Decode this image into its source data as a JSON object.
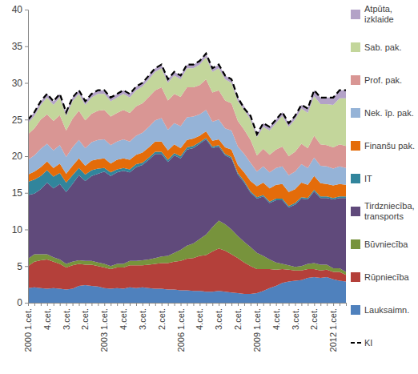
{
  "chart_data": {
    "type": "area",
    "stacked": true,
    "grid": false,
    "legend": "right",
    "categories": [
      "2000 1.cet.",
      null,
      null,
      "4.cet.",
      null,
      null,
      "3.cet.",
      null,
      null,
      "2.cet.",
      null,
      null,
      "2003 1.cet.",
      null,
      null,
      "4.cet.",
      null,
      null,
      "3.cet.",
      null,
      null,
      "2.cet.",
      null,
      null,
      "2006 1.cet.",
      null,
      null,
      "4.cet.",
      null,
      null,
      "3.cet.",
      null,
      null,
      "2.cet.",
      null,
      null,
      "2009 1.cet.",
      null,
      null,
      "4.cet.",
      null,
      null,
      "3.cet.",
      null,
      null,
      "2.cet.",
      null,
      null,
      "2012 1.cet.",
      null,
      null
    ],
    "ylim": [
      0,
      40
    ],
    "yticks": [
      0,
      5,
      10,
      15,
      20,
      25,
      30,
      35,
      40
    ],
    "series": [
      {
        "name": "Lauksaimn.",
        "color": "#4f81bd",
        "values": [
          2.0,
          2.1,
          2.0,
          1.9,
          2.0,
          1.9,
          1.8,
          1.9,
          2.3,
          2.4,
          2.3,
          2.2,
          2.0,
          1.9,
          2.0,
          1.9,
          2.1,
          2.0,
          2.1,
          2.0,
          1.9,
          1.9,
          1.8,
          1.8,
          1.7,
          1.7,
          1.6,
          1.6,
          1.5,
          1.5,
          1.6,
          1.5,
          1.4,
          1.3,
          1.2,
          1.2,
          1.3,
          1.6,
          2.0,
          2.3,
          2.7,
          2.9,
          3.0,
          3.1,
          3.4,
          3.5,
          3.4,
          3.5,
          3.2,
          3.0,
          2.9
        ]
      },
      {
        "name": "Rūpniecība",
        "color": "#b4403a",
        "values": [
          3.0,
          3.5,
          3.8,
          4.0,
          3.6,
          3.4,
          3.0,
          3.2,
          3.0,
          2.8,
          2.9,
          2.8,
          2.8,
          2.7,
          2.8,
          2.9,
          3.0,
          3.1,
          3.0,
          3.2,
          3.4,
          3.5,
          3.6,
          3.8,
          4.0,
          4.3,
          4.5,
          4.8,
          5.0,
          5.5,
          5.8,
          5.6,
          5.2,
          4.8,
          4.3,
          3.8,
          3.3,
          3.0,
          2.6,
          2.2,
          1.9,
          1.6,
          1.4,
          1.3,
          1.2,
          1.1,
          1.0,
          1.0,
          1.0,
          1.2,
          0.9
        ]
      },
      {
        "name": "Būvniecība",
        "color": "#77933c",
        "values": [
          1.0,
          1.0,
          0.8,
          0.7,
          0.6,
          0.6,
          0.5,
          0.5,
          0.5,
          0.5,
          0.5,
          0.5,
          0.5,
          0.4,
          0.5,
          0.5,
          0.6,
          0.6,
          0.7,
          0.7,
          0.8,
          0.9,
          1.0,
          1.2,
          1.5,
          1.8,
          2.0,
          2.3,
          2.8,
          3.3,
          3.8,
          3.6,
          3.4,
          3.0,
          2.8,
          2.6,
          2.2,
          1.8,
          1.3,
          1.0,
          0.7,
          0.6,
          0.5,
          0.6,
          0.7,
          0.8,
          0.8,
          0.7,
          0.5,
          0.5,
          0.4
        ]
      },
      {
        "name": "Tirdzniecība, transports",
        "color": "#604a7b",
        "values": [
          8.7,
          8.3,
          8.9,
          9.8,
          9.4,
          10.3,
          9.8,
          10.6,
          11.6,
          10.9,
          11.6,
          12.1,
          12.6,
          12.3,
          12.5,
          12.7,
          12.1,
          12.8,
          13.0,
          13.6,
          14.2,
          14.0,
          12.8,
          13.3,
          12.5,
          13.1,
          13.0,
          13.0,
          13.0,
          10.8,
          10.1,
          9.4,
          9.7,
          8.4,
          8.1,
          7.4,
          7.4,
          8.1,
          7.7,
          8.5,
          8.7,
          7.9,
          8.5,
          9.2,
          8.8,
          9.8,
          9.1,
          9.1,
          9.4,
          9.6,
          10.1
        ]
      },
      {
        "name": "IT",
        "color": "#31859c",
        "values": [
          1.8,
          1.9,
          1.8,
          1.7,
          1.6,
          1.5,
          1.3,
          1.2,
          1.0,
          0.9,
          0.8,
          0.7,
          0.5,
          0.5,
          0.4,
          0.4,
          0.4,
          0.4,
          0.3,
          0.3,
          0.3,
          0.3,
          0.3,
          0.3,
          0.3,
          0.3,
          0.3,
          0.2,
          0.2,
          0.2,
          0.2,
          0.2,
          0.2,
          0.2,
          0.2,
          0.2,
          0.2,
          0.2,
          0.2,
          0.2,
          0.2,
          0.2,
          0.2,
          0.2,
          0.2,
          0.2,
          0.2,
          0.2,
          0.2,
          0.2,
          0.2
        ]
      },
      {
        "name": "Finanšu pak.",
        "color": "#e46c0a",
        "values": [
          1.0,
          1.1,
          1.2,
          1.2,
          1.2,
          1.3,
          1.2,
          1.3,
          1.3,
          1.2,
          1.3,
          1.3,
          1.3,
          1.2,
          1.3,
          1.3,
          1.3,
          1.3,
          1.4,
          1.4,
          1.4,
          1.4,
          1.3,
          1.2,
          1.1,
          1.0,
          1.0,
          0.9,
          0.9,
          0.8,
          0.8,
          0.9,
          1.0,
          1.1,
          1.2,
          1.4,
          1.5,
          1.7,
          1.8,
          1.9,
          2.0,
          1.9,
          1.9,
          2.0,
          1.8,
          1.9,
          1.8,
          1.7,
          1.7,
          1.7,
          1.6
        ]
      },
      {
        "name": "Nek. īp. pak.",
        "color": "#95b3d7",
        "values": [
          2.0,
          2.2,
          2.5,
          2.4,
          2.4,
          2.5,
          2.3,
          2.5,
          2.5,
          2.4,
          2.5,
          2.6,
          2.6,
          2.5,
          2.5,
          2.6,
          2.5,
          2.6,
          2.7,
          2.8,
          2.9,
          3.2,
          2.8,
          2.9,
          3.0,
          3.1,
          3.0,
          2.9,
          2.9,
          2.6,
          2.7,
          2.6,
          2.6,
          2.5,
          2.5,
          2.5,
          2.0,
          2.2,
          2.2,
          2.3,
          2.4,
          2.3,
          2.4,
          2.5,
          2.3,
          2.5,
          2.4,
          2.4,
          2.3,
          2.4,
          2.3
        ]
      },
      {
        "name": "Prof. pak.",
        "color": "#d99694",
        "values": [
          3.5,
          3.7,
          4.0,
          4.0,
          4.0,
          4.1,
          3.6,
          3.9,
          4.0,
          3.8,
          3.9,
          4.0,
          4.0,
          3.9,
          3.9,
          4.0,
          3.9,
          4.0,
          4.0,
          4.1,
          4.1,
          4.2,
          4.0,
          4.0,
          4.0,
          4.1,
          4.0,
          4.0,
          4.2,
          4.0,
          4.0,
          3.8,
          3.7,
          3.5,
          3.3,
          3.1,
          2.2,
          2.4,
          2.4,
          2.5,
          2.7,
          2.6,
          2.7,
          2.8,
          2.7,
          3.0,
          2.9,
          2.9,
          2.9,
          3.0,
          3.0
        ]
      },
      {
        "name": "Sab. pak.",
        "color": "#c3d69b",
        "values": [
          1.5,
          1.7,
          2.0,
          2.3,
          2.2,
          2.4,
          2.0,
          2.4,
          2.3,
          2.1,
          2.2,
          2.3,
          2.2,
          2.1,
          2.1,
          2.2,
          2.1,
          2.2,
          2.3,
          2.4,
          2.5,
          2.6,
          2.4,
          2.5,
          2.4,
          2.6,
          2.6,
          2.8,
          3.0,
          2.8,
          3.0,
          2.9,
          2.8,
          2.7,
          2.7,
          2.8,
          2.5,
          3.0,
          3.3,
          3.6,
          4.2,
          4.0,
          4.4,
          4.8,
          4.8,
          5.4,
          5.5,
          5.6,
          5.8,
          6.3,
          6.5
        ]
      },
      {
        "name": "Atpūta, izklaide",
        "color": "#b3a2c7",
        "values": [
          0.5,
          0.5,
          0.5,
          0.5,
          0.5,
          0.5,
          0.5,
          0.5,
          0.5,
          0.5,
          0.5,
          0.5,
          0.5,
          0.5,
          0.5,
          0.5,
          0.5,
          0.5,
          0.5,
          0.5,
          0.5,
          0.5,
          0.5,
          0.5,
          0.5,
          0.5,
          0.5,
          0.5,
          0.5,
          0.5,
          0.5,
          0.5,
          0.5,
          0.5,
          0.5,
          0.5,
          0.4,
          0.5,
          0.5,
          0.5,
          0.5,
          0.5,
          0.5,
          0.5,
          0.6,
          0.8,
          0.9,
          0.9,
          1.0,
          1.1,
          1.1
        ]
      },
      {
        "name": "KI",
        "type": "line",
        "line_style": "dashed",
        "color": "#000000",
        "values": [
          25,
          26,
          27.5,
          28.5,
          27.5,
          28.5,
          26,
          28,
          29,
          27.5,
          28.5,
          29,
          29,
          28,
          28.5,
          29,
          28.5,
          29.5,
          30,
          31,
          32,
          32.5,
          30.5,
          31.5,
          31,
          32.5,
          32.5,
          33,
          34,
          32,
          32.5,
          31,
          30.5,
          28,
          26.5,
          25.5,
          23,
          24.5,
          24,
          25,
          26,
          24.5,
          25.5,
          27,
          26.5,
          29,
          28,
          28,
          28,
          29,
          29
        ]
      }
    ]
  }
}
